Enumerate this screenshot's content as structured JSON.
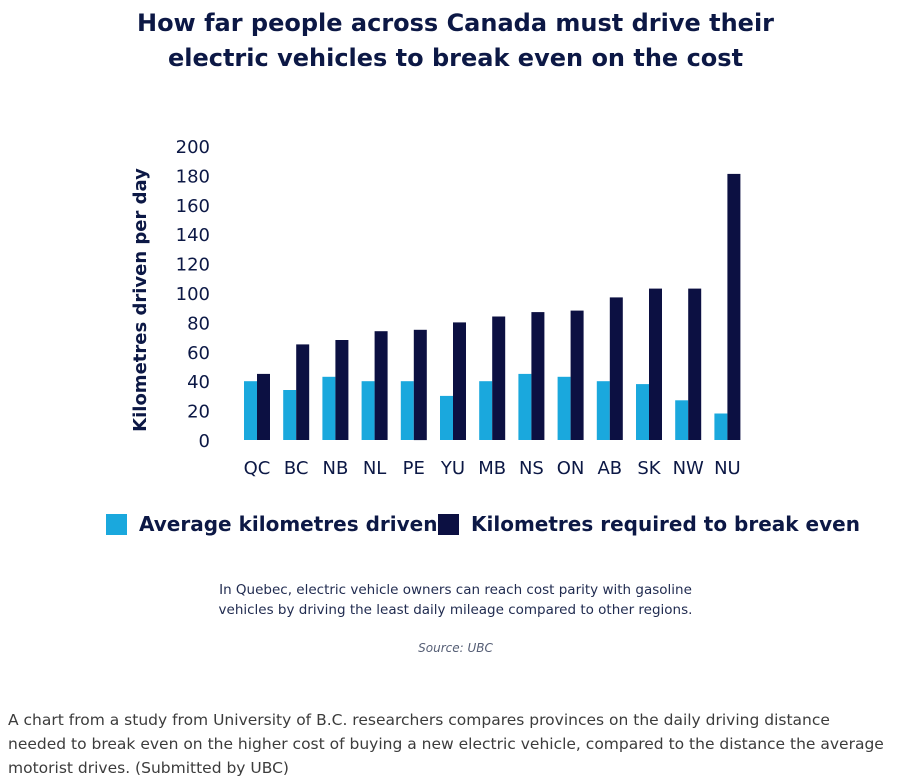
{
  "colors": {
    "average": "#1aa8dd",
    "required": "#0c1042",
    "text": "#0c1845"
  },
  "chart_data": {
    "type": "bar",
    "title": "How far people across Canada must drive their electric vehicles to break even on the cost",
    "title_lines": [
      "How far people across Canada must drive their",
      "electric vehicles to break even on the cost"
    ],
    "ylabel": "Kilometres driven per day",
    "xlabel": "",
    "ylim": [
      0,
      200
    ],
    "yticks": [
      0,
      20,
      40,
      60,
      80,
      100,
      120,
      140,
      160,
      180,
      200
    ],
    "categories": [
      "QC",
      "BC",
      "NB",
      "NL",
      "PE",
      "YU",
      "MB",
      "NS",
      "ON",
      "AB",
      "SK",
      "NW",
      "NU"
    ],
    "series": [
      {
        "name": "Average kilometres driven",
        "values": [
          40,
          34,
          43,
          40,
          40,
          30,
          40,
          45,
          43,
          40,
          38,
          27,
          18
        ]
      },
      {
        "name": "Kilometres required to break even",
        "values": [
          45,
          65,
          68,
          74,
          75,
          80,
          84,
          87,
          88,
          97,
          103,
          103,
          181
        ]
      }
    ],
    "legend": "bottom"
  },
  "note_lines": [
    "In Quebec, electric vehicle owners can reach cost parity with gasoline",
    "vehicles by driving the least daily mileage compared to other regions."
  ],
  "source": "Source: UBC",
  "caption_lines": [
    "A chart from a study from University of B.C. researchers compares provinces on the daily driving distance",
    "needed to break even on the higher cost of buying a new electric vehicle, compared to the distance the average",
    "motorist drives. (Submitted by UBC)"
  ]
}
